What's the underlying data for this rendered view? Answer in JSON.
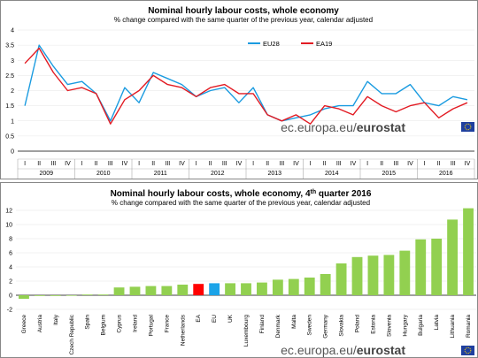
{
  "chart_data": [
    {
      "type": "line",
      "title": "Nominal hourly labour costs, whole economy",
      "subtitle": "% change compared with the same quarter of the previous year, calendar adjusted",
      "ylim": [
        0,
        4
      ],
      "yticks": [
        "0",
        "0.5",
        "1",
        "1.5",
        "2",
        "2.5",
        "3",
        "3.5",
        "4"
      ],
      "quarters": [
        "I",
        "II",
        "III",
        "IV"
      ],
      "years": [
        "2009",
        "2010",
        "2011",
        "2012",
        "2013",
        "2014",
        "2015",
        "2016"
      ],
      "legend_position": "top-right",
      "series": [
        {
          "name": "EU28",
          "color": "#1a9be0",
          "values": [
            1.5,
            3.5,
            2.8,
            2.2,
            2.3,
            1.9,
            1.0,
            2.1,
            1.6,
            2.6,
            2.4,
            2.2,
            1.8,
            2.0,
            2.1,
            1.6,
            2.1,
            1.2,
            1.0,
            1.1,
            1.2,
            1.4,
            1.5,
            1.5,
            2.3,
            1.9,
            1.9,
            2.2,
            1.6,
            1.5,
            1.8,
            1.7
          ]
        },
        {
          "name": "EA19",
          "color": "#e21b23",
          "values": [
            2.9,
            3.4,
            2.6,
            2.0,
            2.1,
            1.9,
            0.9,
            1.7,
            2.0,
            2.5,
            2.2,
            2.1,
            1.8,
            2.1,
            2.2,
            1.9,
            1.9,
            1.2,
            1.0,
            1.2,
            0.9,
            1.5,
            1.4,
            1.2,
            1.8,
            1.5,
            1.3,
            1.5,
            1.6,
            1.1,
            1.4,
            1.6
          ]
        }
      ]
    },
    {
      "type": "bar",
      "title": "Nominal hourly labour costs, whole economy, 4",
      "title_sup": "th",
      "title_tail": " quarter 2016",
      "subtitle": "% change compared with the same quarter of the previous year, calendar adjusted",
      "ylim": [
        -2,
        12
      ],
      "yticks": [
        "-2",
        "0",
        "2",
        "4",
        "6",
        "8",
        "10",
        "12"
      ],
      "categories": [
        "Greece",
        "Austria",
        "Italy",
        "Czech Republic",
        "Spain",
        "Belgium",
        "Cyprus",
        "Ireland",
        "Portugal",
        "France",
        "Netherlands",
        "EA",
        "EU",
        "UK",
        "Luxembourg",
        "Finland",
        "Denmark",
        "Malta",
        "Sweden",
        "Germany",
        "Slovakia",
        "Poland",
        "Estonia",
        "Slovenia",
        "Hungary",
        "Bulgaria",
        "Latvia",
        "Lithuania",
        "Romania"
      ],
      "values": [
        -0.5,
        -0.1,
        -0.1,
        0.0,
        0.1,
        0.1,
        1.1,
        1.2,
        1.3,
        1.3,
        1.5,
        1.6,
        1.7,
        1.7,
        1.7,
        1.8,
        2.2,
        2.3,
        2.5,
        3.0,
        4.5,
        5.4,
        5.6,
        5.7,
        6.3,
        7.9,
        8.0,
        10.7,
        12.3
      ],
      "colors": {
        "default": "#92d050",
        "EA": "#ff0000",
        "EU": "#1aa3e8"
      }
    }
  ],
  "brand": {
    "prefix": "ec.europa.eu/",
    "name": "eurostat"
  }
}
